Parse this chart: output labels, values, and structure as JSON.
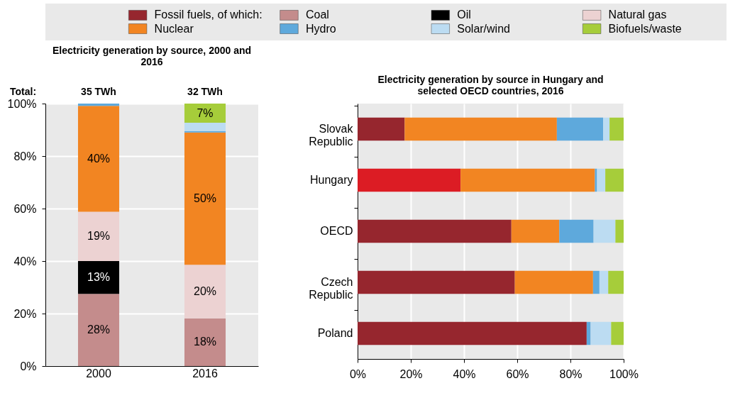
{
  "chart_data": [
    {
      "type": "bar",
      "title": "Electricity generation by source, 2000 and 2016",
      "stacked": true,
      "categories": [
        "2000",
        "2016"
      ],
      "ylim": [
        0,
        100
      ],
      "yticks": [
        {
          "value": 0,
          "label": "0%"
        },
        {
          "value": 20,
          "label": "20%"
        },
        {
          "value": 40,
          "label": "40%"
        },
        {
          "value": 60,
          "label": "60%"
        },
        {
          "value": 80,
          "label": "80%"
        },
        {
          "value": 100,
          "label": "100%"
        }
      ],
      "grid": "y",
      "legend": "top",
      "annotations": [
        "Total:",
        "35 TWh",
        "32 TWh"
      ],
      "series": [
        {
          "name": "Coal",
          "color": "#c48c8c",
          "values": [
            27.5,
            18.2
          ],
          "value_labels": [
            "28%",
            "18%"
          ]
        },
        {
          "name": "Oil",
          "color": "#000000",
          "values": [
            12.5,
            0
          ],
          "value_labels": [
            "13%",
            null
          ]
        },
        {
          "name": "Natural gas",
          "color": "#ecd2d2",
          "values": [
            18.8,
            20.4
          ],
          "value_labels": [
            "19%",
            "20%"
          ]
        },
        {
          "name": "Nuclear",
          "color": "#f28522",
          "values": [
            40.3,
            50.4
          ],
          "value_labels": [
            "40%",
            "50%"
          ]
        },
        {
          "name": "Hydro",
          "color": "#5ea9dc",
          "values": [
            0.9,
            0.5
          ],
          "value_labels": [
            null,
            null
          ]
        },
        {
          "name": "Solar/wind",
          "color": "#bcdcf2",
          "values": [
            0,
            3.2
          ],
          "value_labels": [
            null,
            null
          ]
        },
        {
          "name": "Biofuels/waste",
          "color": "#a6cd3a",
          "values": [
            0,
            7.3
          ],
          "value_labels": [
            null,
            "7%"
          ]
        }
      ]
    },
    {
      "type": "bar",
      "title": "Electricity generation by source in  Hungary and selected OECD countries, 2016",
      "stacked": true,
      "orientation": "horizontal",
      "categories": [
        "Slovak Republic",
        "Hungary",
        "OECD",
        "Czech Republic",
        "Poland"
      ],
      "xlim": [
        0,
        100
      ],
      "xticks": [
        {
          "value": 0,
          "label": "0%"
        },
        {
          "value": 20,
          "label": "20%"
        },
        {
          "value": 40,
          "label": "40%"
        },
        {
          "value": 60,
          "label": "60%"
        },
        {
          "value": 80,
          "label": "80%"
        },
        {
          "value": 100,
          "label": "100%"
        }
      ],
      "grid": "x",
      "legend": "top",
      "series": [
        {
          "name": "Fossil fuels, of which:",
          "color": "#96262e",
          "colors": [
            "#96262e",
            "#dc1c24",
            "#96262e",
            "#96262e",
            "#96262e"
          ],
          "values": [
            17.7,
            38.7,
            57.8,
            59.1,
            86.1
          ]
        },
        {
          "name": "Nuclear",
          "color": "#f28522",
          "values": [
            57.2,
            50.5,
            18.0,
            29.4,
            0
          ]
        },
        {
          "name": "Hydro",
          "color": "#5ea9dc",
          "values": [
            17.4,
            0.8,
            12.9,
            2.4,
            1.5
          ]
        },
        {
          "name": "Solar/wind",
          "color": "#bcdcf2",
          "values": [
            2.4,
            3.1,
            8.2,
            3.3,
            7.7
          ]
        },
        {
          "name": "Biofuels/waste",
          "color": "#a6cd3a",
          "values": [
            5.3,
            6.9,
            3.1,
            5.8,
            4.7
          ]
        }
      ]
    }
  ]
}
